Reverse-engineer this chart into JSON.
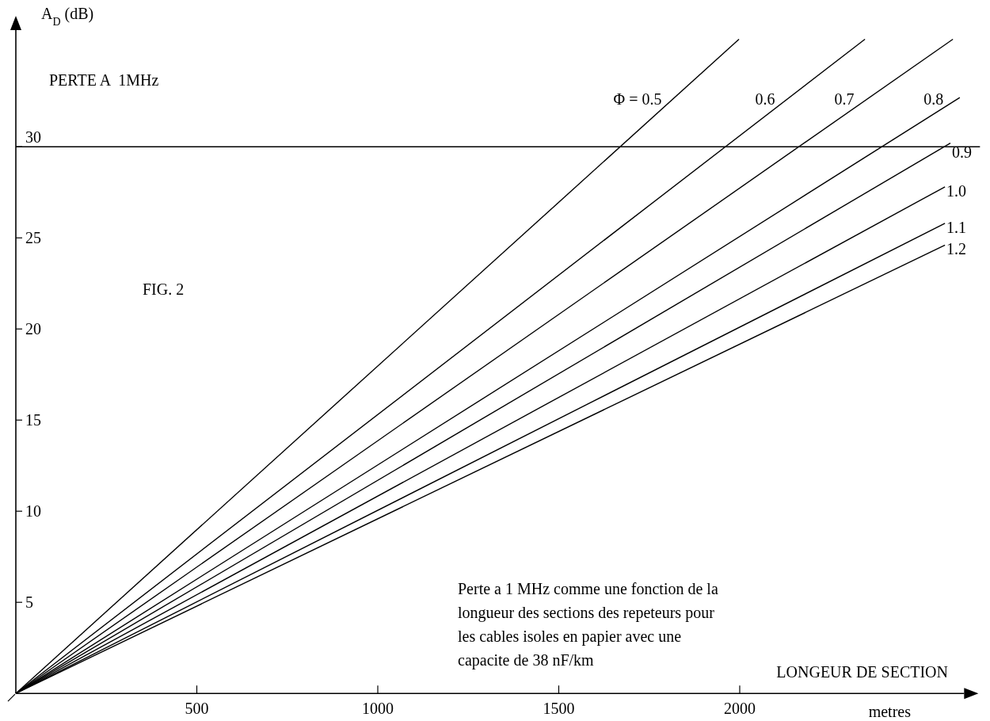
{
  "chart_data": {
    "type": "line",
    "title": "PERTE A  1MHz",
    "xlabel": "LONGEUR DE SECTION",
    "ylabel": "A$_{D}$ (dB)",
    "annotations": [
      "FIG. 2",
      "Perte a 1 MHz comme une fonction de la longueur des sections des repeteurs pour les cables isoles en papier avec une capacite de 38 nF/km",
      "metres"
    ],
    "xlim": [
      0,
      2620
    ],
    "ylim": [
      0,
      36.4
    ],
    "xticks": [
      500,
      1000,
      1500,
      2000
    ],
    "yticks": [
      5,
      10,
      15,
      20,
      25,
      30
    ],
    "ref_lines": [
      {
        "axis": "y",
        "value": 30,
        "color": "#000000"
      }
    ],
    "grid": false,
    "marker": "none",
    "line_style": "solid",
    "series": [
      {
        "name": "Φ = 0.5",
        "color": "#000000",
        "x": [
          0,
          1998
        ],
        "values": [
          0,
          35.9
        ]
      },
      {
        "name": "0.6",
        "color": "#000000",
        "x": [
          0,
          2346
        ],
        "values": [
          0,
          35.9
        ]
      },
      {
        "name": "0.7",
        "color": "#000000",
        "x": [
          0,
          2589
        ],
        "values": [
          0,
          35.9
        ]
      },
      {
        "name": "0.8",
        "color": "#000000",
        "x": [
          0,
          2608
        ],
        "values": [
          0,
          32.7
        ]
      },
      {
        "name": "0.9",
        "color": "#000000",
        "x": [
          0,
          2582
        ],
        "values": [
          0,
          30.2
        ]
      },
      {
        "name": "1.0",
        "color": "#000000",
        "x": [
          0,
          2567
        ],
        "values": [
          0,
          27.8
        ]
      },
      {
        "name": "1.1",
        "color": "#000000",
        "x": [
          0,
          2567
        ],
        "values": [
          0,
          25.8
        ]
      },
      {
        "name": "1.2",
        "color": "#000000",
        "x": [
          0,
          2567
        ],
        "values": [
          0,
          24.6
        ]
      }
    ]
  }
}
